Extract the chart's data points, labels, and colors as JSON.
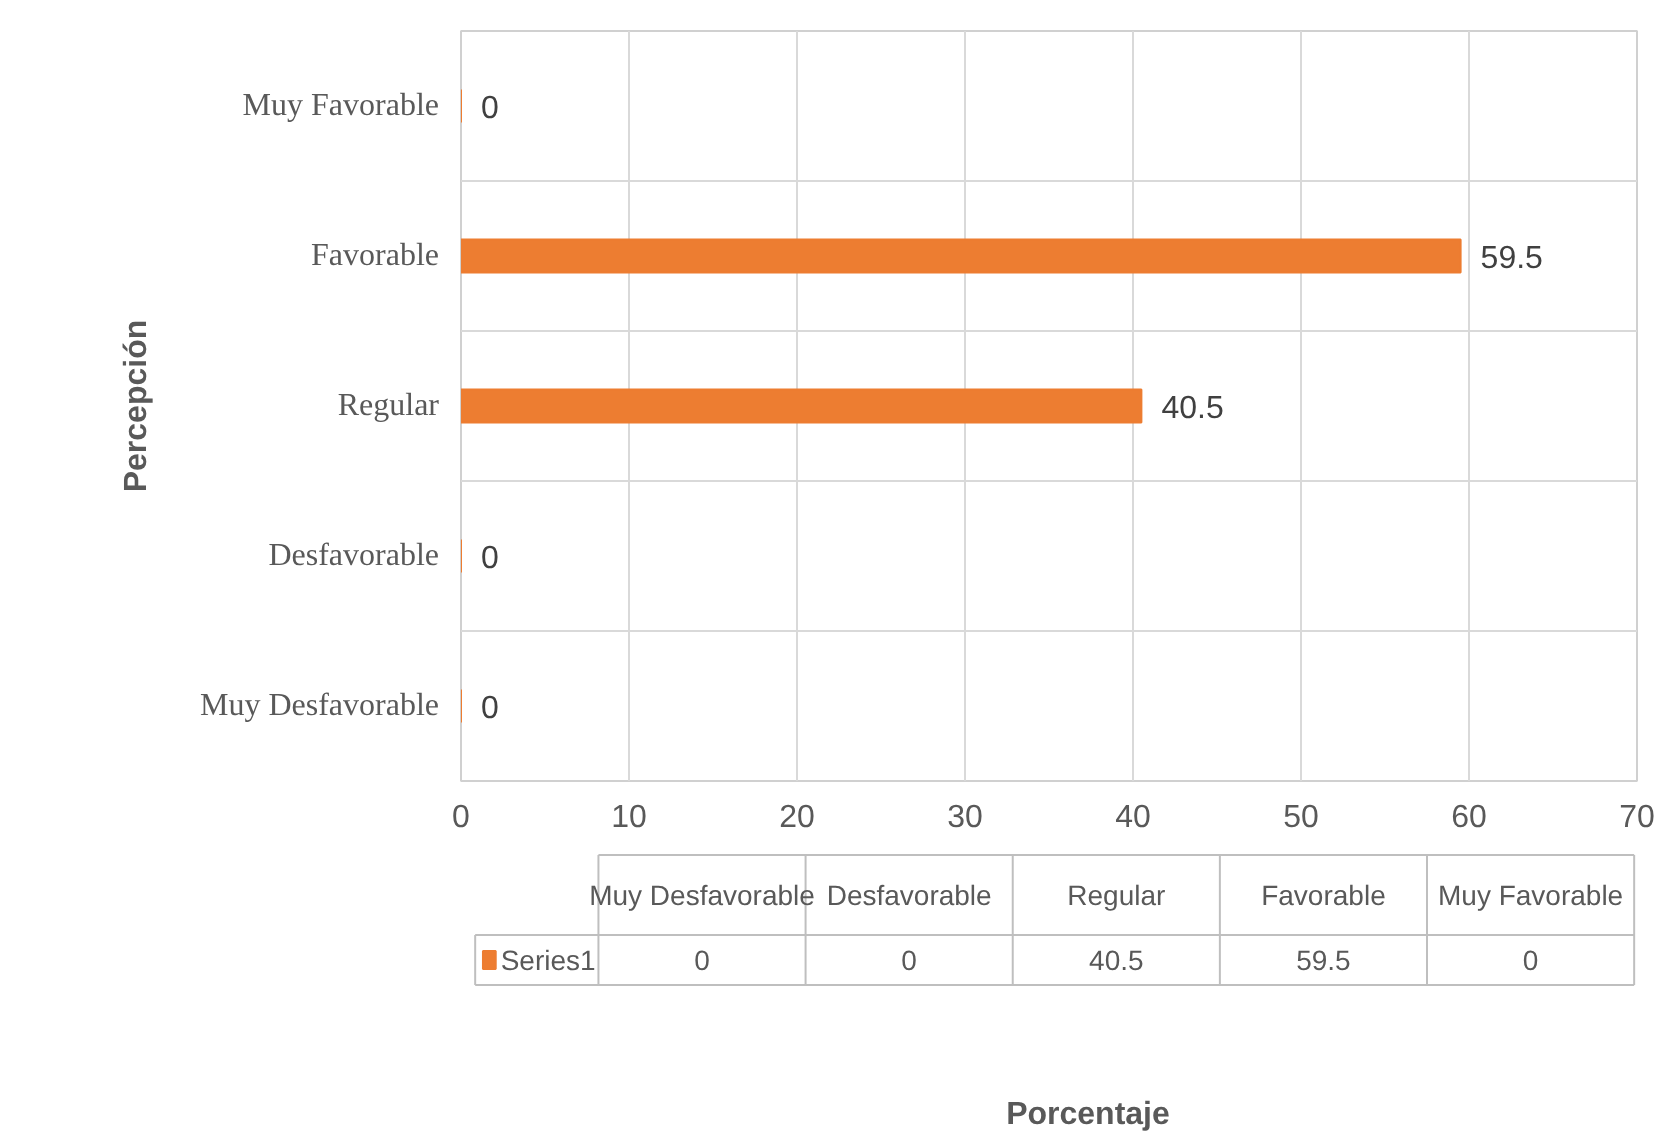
{
  "chart_data": [
    {
      "type": "bar",
      "orientation": "horizontal",
      "ylabel": "Percepción",
      "categories": [
        "Muy Favorable",
        "Favorable",
        "Regular",
        "Desfavorable",
        "Muy Desfavorable"
      ],
      "series": [
        {
          "color": "#ed7d31",
          "values": [
            0,
            59.5,
            40.5,
            0,
            0
          ]
        }
      ],
      "xlim": [
        0,
        70
      ],
      "xticks": [
        0,
        10,
        20,
        30,
        40,
        50,
        60,
        70
      ],
      "grid": true,
      "data_labels": true
    },
    {
      "type": "other",
      "categories": [
        "Muy Desfavorable",
        "Desfavorable",
        "Regular",
        "Favorable",
        "Muy Favorable"
      ],
      "series": [
        {
          "name": "Series1",
          "color": "#ed7d31",
          "values": [
            0,
            0,
            40.5,
            59.5,
            0
          ]
        }
      ],
      "data_labels": true,
      "annotations": [
        "Porcentaje"
      ]
    }
  ]
}
